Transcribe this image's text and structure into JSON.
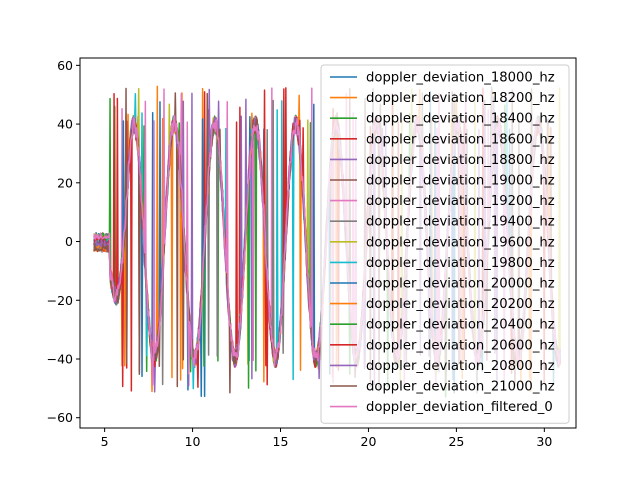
{
  "chart_data": {
    "type": "line",
    "title": "",
    "xlabel": "",
    "ylabel": "",
    "xlim": [
      3.6,
      31.8
    ],
    "ylim": [
      -63.5,
      62.5
    ],
    "x_ticks": [
      5,
      10,
      15,
      20,
      25,
      30
    ],
    "y_ticks": [
      -60,
      -40,
      -20,
      0,
      20,
      40,
      60
    ],
    "x_tick_labels": [
      "5",
      "10",
      "15",
      "20",
      "25",
      "30"
    ],
    "y_tick_labels": [
      "−60",
      "−40",
      "−20",
      "0",
      "20",
      "40",
      "60"
    ],
    "grid": false,
    "legend_position": "top-right",
    "signal": {
      "x_start": 4.4,
      "x_end": 30.9,
      "flat_until": 5.3,
      "amplitude": 40,
      "ramp_until": 6.5,
      "period": 2.3,
      "phase_x": 6.1
    },
    "series": [
      {
        "name": "doppler_deviation_18000_hz",
        "color": "#1f77b4"
      },
      {
        "name": "doppler_deviation_18200_hz",
        "color": "#ff7f0e"
      },
      {
        "name": "doppler_deviation_18400_hz",
        "color": "#2ca02c"
      },
      {
        "name": "doppler_deviation_18600_hz",
        "color": "#d62728"
      },
      {
        "name": "doppler_deviation_18800_hz",
        "color": "#9467bd"
      },
      {
        "name": "doppler_deviation_19000_hz",
        "color": "#8c564b"
      },
      {
        "name": "doppler_deviation_19200_hz",
        "color": "#e377c2"
      },
      {
        "name": "doppler_deviation_19400_hz",
        "color": "#7f7f7f"
      },
      {
        "name": "doppler_deviation_19600_hz",
        "color": "#bcbd22"
      },
      {
        "name": "doppler_deviation_19800_hz",
        "color": "#17becf"
      },
      {
        "name": "doppler_deviation_20000_hz",
        "color": "#1f77b4"
      },
      {
        "name": "doppler_deviation_20200_hz",
        "color": "#ff7f0e"
      },
      {
        "name": "doppler_deviation_20400_hz",
        "color": "#2ca02c"
      },
      {
        "name": "doppler_deviation_20600_hz",
        "color": "#d62728"
      },
      {
        "name": "doppler_deviation_20800_hz",
        "color": "#9467bd"
      },
      {
        "name": "doppler_deviation_21000_hz",
        "color": "#8c564b"
      },
      {
        "name": "doppler_deviation_filtered_0",
        "color": "#e377c2"
      }
    ]
  }
}
